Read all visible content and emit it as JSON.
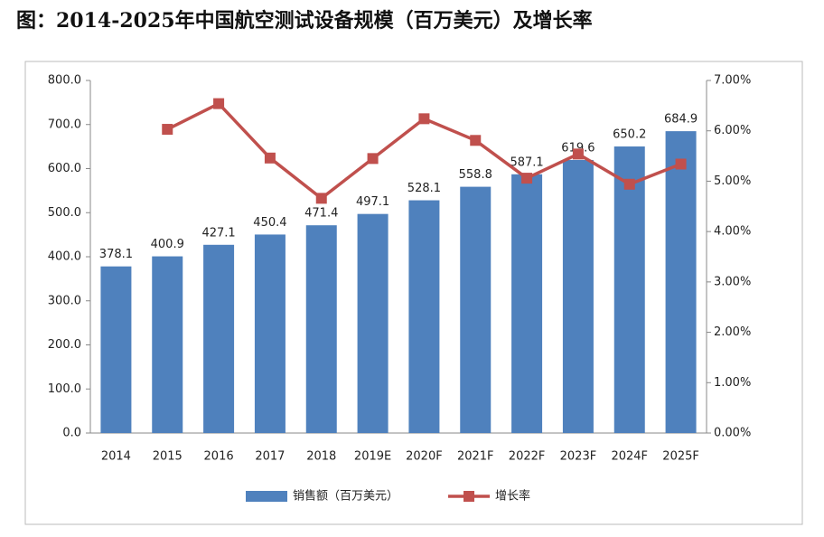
{
  "chart_data": {
    "type": "bar",
    "title": "图：2014-2025年中国航空测试设备规模（百万美元）及增长率",
    "categories": [
      "2014",
      "2015",
      "2016",
      "2017",
      "2018",
      "2019E",
      "2020F",
      "2021F",
      "2022F",
      "2023F",
      "2024F",
      "2025F"
    ],
    "series": [
      {
        "name": "销售额（百万美元）",
        "type": "bar",
        "color": "#4f81bd",
        "values": [
          378.1,
          400.9,
          427.1,
          450.4,
          471.4,
          497.1,
          528.1,
          558.8,
          587.1,
          619.6,
          650.2,
          684.9
        ]
      },
      {
        "name": "增长率",
        "type": "line",
        "axis": "y2",
        "color": "#c0504d",
        "values": [
          null,
          6.03,
          6.54,
          5.46,
          4.66,
          5.45,
          6.24,
          5.81,
          5.06,
          5.54,
          4.94,
          5.34
        ]
      }
    ],
    "ylim": [
      0,
      800
    ],
    "yticks": [
      {
        "value": 0,
        "label": "0.0"
      },
      {
        "value": 100,
        "label": "100.0"
      },
      {
        "value": 200,
        "label": "200.0"
      },
      {
        "value": 300,
        "label": "300.0"
      },
      {
        "value": 400,
        "label": "400.0"
      },
      {
        "value": 500,
        "label": "500.0"
      },
      {
        "value": 600,
        "label": "600.0"
      },
      {
        "value": 700,
        "label": "700.0"
      },
      {
        "value": 800,
        "label": "800.0"
      }
    ],
    "y2lim": [
      0,
      7
    ],
    "y2ticks": [
      {
        "value": 0,
        "label": "0.00%"
      },
      {
        "value": 1,
        "label": "1.00%"
      },
      {
        "value": 2,
        "label": "2.00%"
      },
      {
        "value": 3,
        "label": "3.00%"
      },
      {
        "value": 4,
        "label": "4.00%"
      },
      {
        "value": 5,
        "label": "5.00%"
      },
      {
        "value": 6,
        "label": "6.00%"
      },
      {
        "value": 7,
        "label": "7.00%"
      }
    ],
    "legend": "bottom"
  }
}
